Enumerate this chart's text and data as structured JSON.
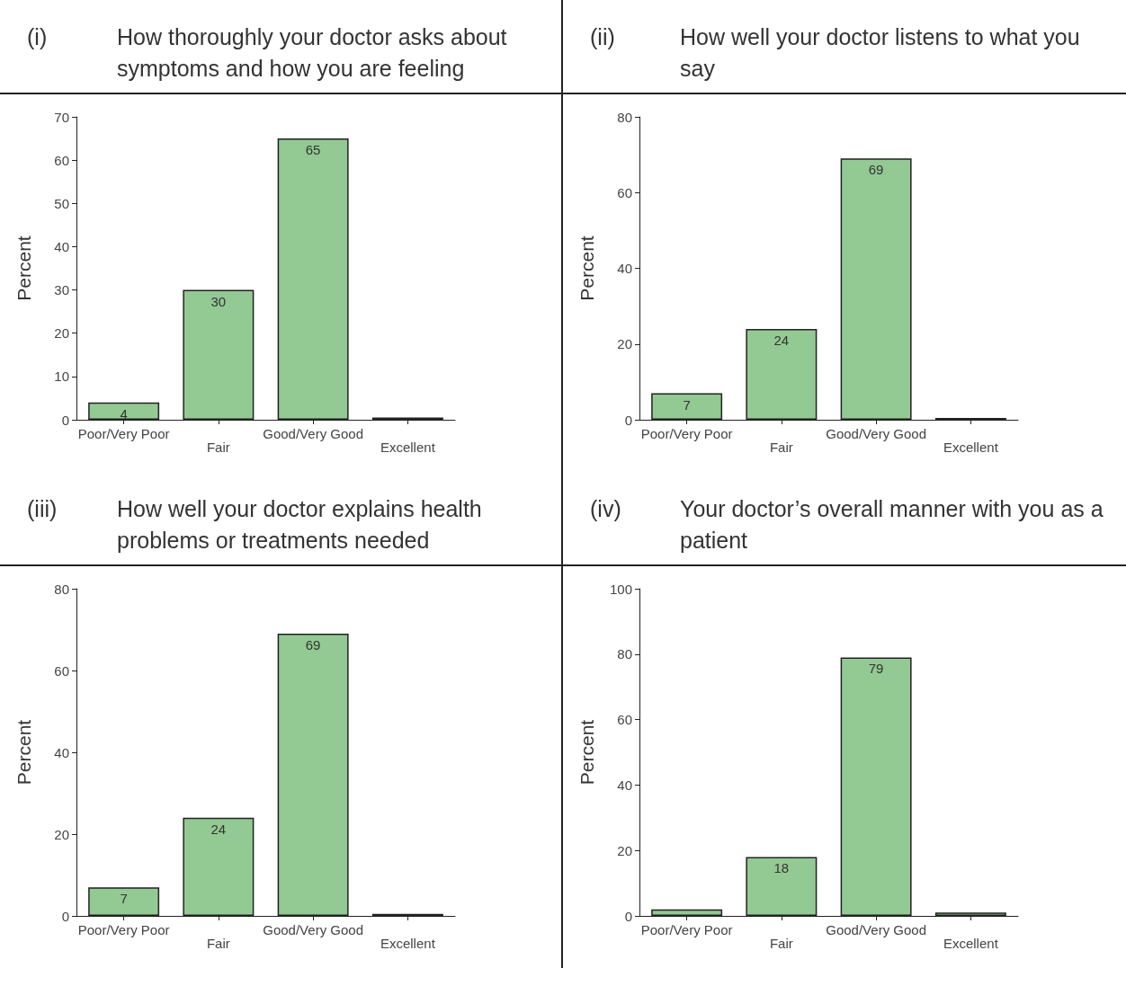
{
  "chart_data": [
    {
      "type": "bar",
      "annotations": [
        "(i)"
      ],
      "title": "How thoroughly your doctor asks about symptoms and how you are feeling",
      "ylabel": "Percent",
      "categories": [
        "Poor/Very Poor",
        "Fair",
        "Good/Very Good",
        "Excellent"
      ],
      "values": [
        4,
        30,
        65,
        0.5
      ],
      "value_labels": [
        "4",
        "30",
        "65",
        null
      ],
      "color": "#93c993",
      "ylim": [
        0,
        70
      ],
      "yticks": [
        0,
        10,
        20,
        30,
        40,
        50,
        60,
        70
      ]
    },
    {
      "type": "bar",
      "annotations": [
        "(ii)"
      ],
      "title": "How well your doctor listens to what you say",
      "ylabel": "Percent",
      "categories": [
        "Poor/Very Poor",
        "Fair",
        "Good/Very Good",
        "Excellent"
      ],
      "values": [
        7,
        24,
        69,
        0.5
      ],
      "value_labels": [
        "7",
        "24",
        "69",
        null
      ],
      "color": "#93c993",
      "ylim": [
        0,
        80
      ],
      "yticks": [
        0,
        20,
        40,
        60,
        80
      ]
    },
    {
      "type": "bar",
      "annotations": [
        "(iii)"
      ],
      "title": "How well your doctor explains health problems or treatments needed",
      "ylabel": "Percent",
      "categories": [
        "Poor/Very Poor",
        "Fair",
        "Good/Very Good",
        "Excellent"
      ],
      "values": [
        7,
        24,
        69,
        0.5
      ],
      "value_labels": [
        "7",
        "24",
        "69",
        null
      ],
      "color": "#93c993",
      "ylim": [
        0,
        80
      ],
      "yticks": [
        0,
        20,
        40,
        60,
        80
      ]
    },
    {
      "type": "bar",
      "annotations": [
        "(iv)"
      ],
      "title": "Your doctor’s overall manner with you as a patient",
      "ylabel": "Percent",
      "categories": [
        "Poor/Very Poor",
        "Fair",
        "Good/Very Good",
        "Excellent"
      ],
      "values": [
        2,
        18,
        79,
        1
      ],
      "value_labels": [
        null,
        "18",
        "79",
        null
      ],
      "color": "#93c993",
      "ylim": [
        0,
        100
      ],
      "yticks": [
        0,
        20,
        40,
        60,
        80,
        100
      ]
    }
  ]
}
